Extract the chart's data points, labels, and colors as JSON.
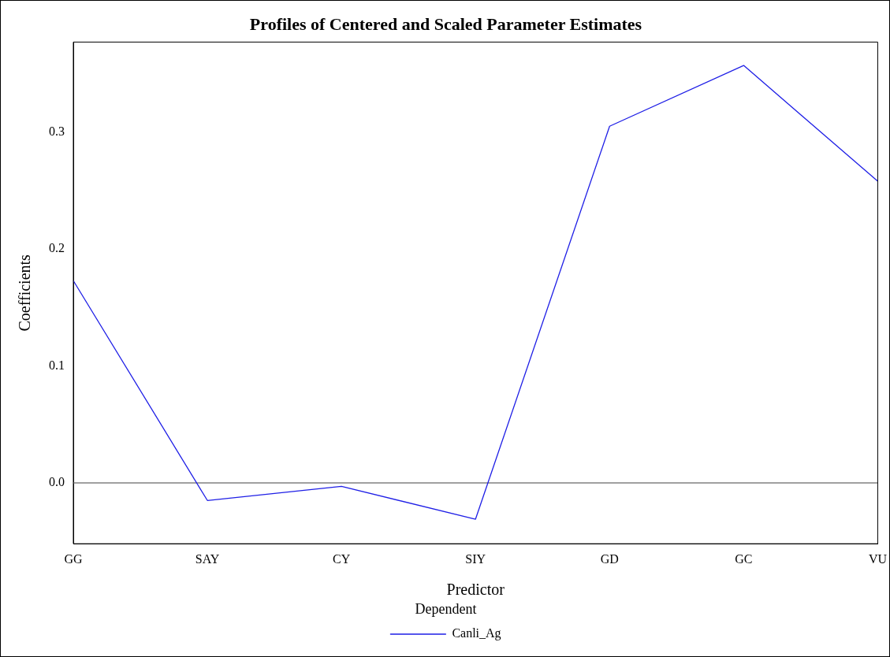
{
  "chart_data": {
    "type": "line",
    "title": "Profiles of Centered and Scaled Parameter Estimates",
    "xlabel": "Predictor",
    "ylabel": "Coefficients",
    "legend_title": "Dependent",
    "categories": [
      "GG",
      "SAY",
      "CY",
      "SIY",
      "GD",
      "GC",
      "VU"
    ],
    "series": [
      {
        "name": "Canli_Ag",
        "color": "#1f1fe6",
        "values": [
          0.173,
          -0.015,
          -0.003,
          -0.031,
          0.305,
          0.357,
          0.258
        ]
      }
    ],
    "ylim": [
      -0.052,
      0.377
    ],
    "yticks": [
      {
        "value": 0,
        "label": "0.0"
      },
      {
        "value": 0.1,
        "label": "0.1"
      },
      {
        "value": 0.2,
        "label": "0.2"
      },
      {
        "value": 0.3,
        "label": "0.3"
      }
    ],
    "ref_lines": [
      {
        "axis": "y",
        "value": 0,
        "color": "#808080"
      }
    ],
    "grid": false,
    "legend": "bottom",
    "marker": "none",
    "line_style": "solid"
  }
}
